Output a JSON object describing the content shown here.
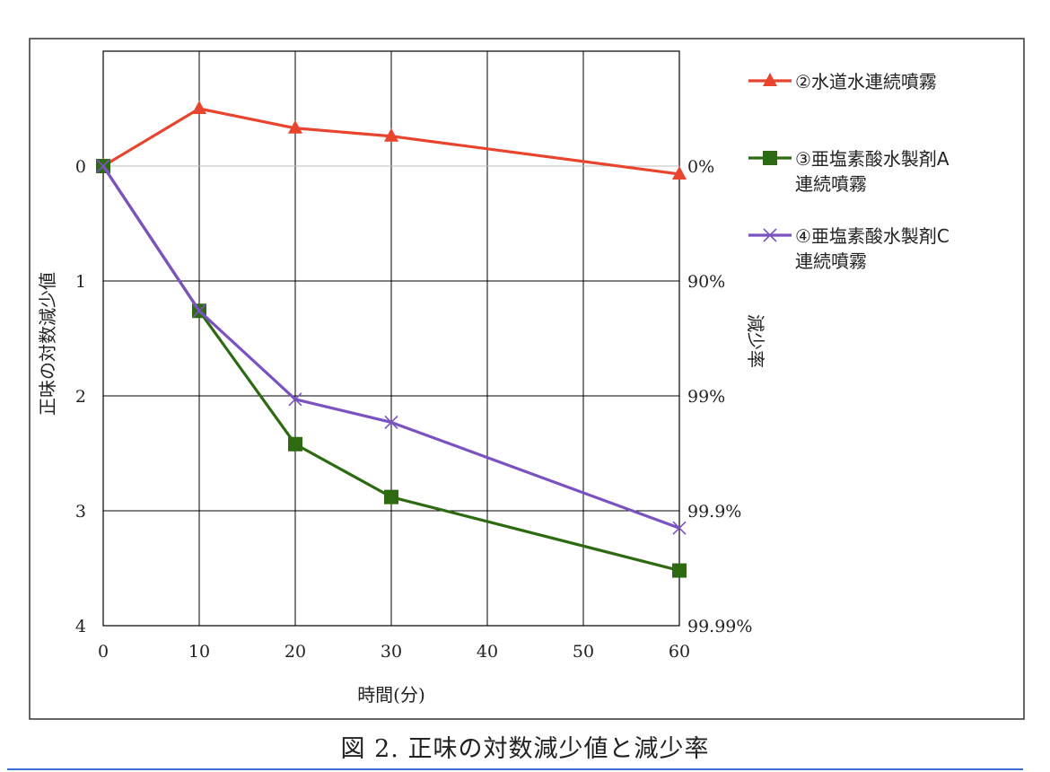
{
  "chart_data": {
    "type": "line",
    "x": [
      0,
      10,
      20,
      30,
      60
    ],
    "xticks": [
      "0",
      "10",
      "20",
      "30",
      "40",
      "50",
      "60"
    ],
    "xlim": [
      0,
      60
    ],
    "ylim": [
      0,
      4
    ],
    "y_inverted": true,
    "yticks": [
      "0",
      "1",
      "2",
      "3",
      "4"
    ],
    "y2ticks": [
      "0%",
      "90%",
      "99%",
      "99.9%",
      "99.99%"
    ],
    "xlabel": "時間(分)",
    "ylabel": "正味の対数減少値",
    "y2label": "減少率",
    "grid": true,
    "legend_position": "right",
    "series": [
      {
        "name": "②水道水連続噴霧",
        "legend_lines": [
          "②水道水連続噴霧"
        ],
        "color": "#e8442e",
        "marker": "triangle",
        "values": [
          0,
          -0.5,
          -0.33,
          -0.26,
          0.07
        ]
      },
      {
        "name": "③亜塩素酸水製剤A連続噴霧",
        "legend_lines": [
          "③亜塩素酸水製剤A",
          "連続噴霧"
        ],
        "color": "#2d6a12",
        "marker": "square",
        "values": [
          0,
          1.26,
          2.42,
          2.88,
          3.52
        ]
      },
      {
        "name": "④亜塩素酸水製剤C連続噴霧",
        "legend_lines": [
          "④亜塩素酸水製剤C",
          "連続噴霧"
        ],
        "color": "#7b52c2",
        "marker": "x",
        "values": [
          0,
          1.26,
          2.03,
          2.23,
          3.15
        ]
      }
    ]
  },
  "caption": "図 2.  正味の対数減少値と減少率"
}
